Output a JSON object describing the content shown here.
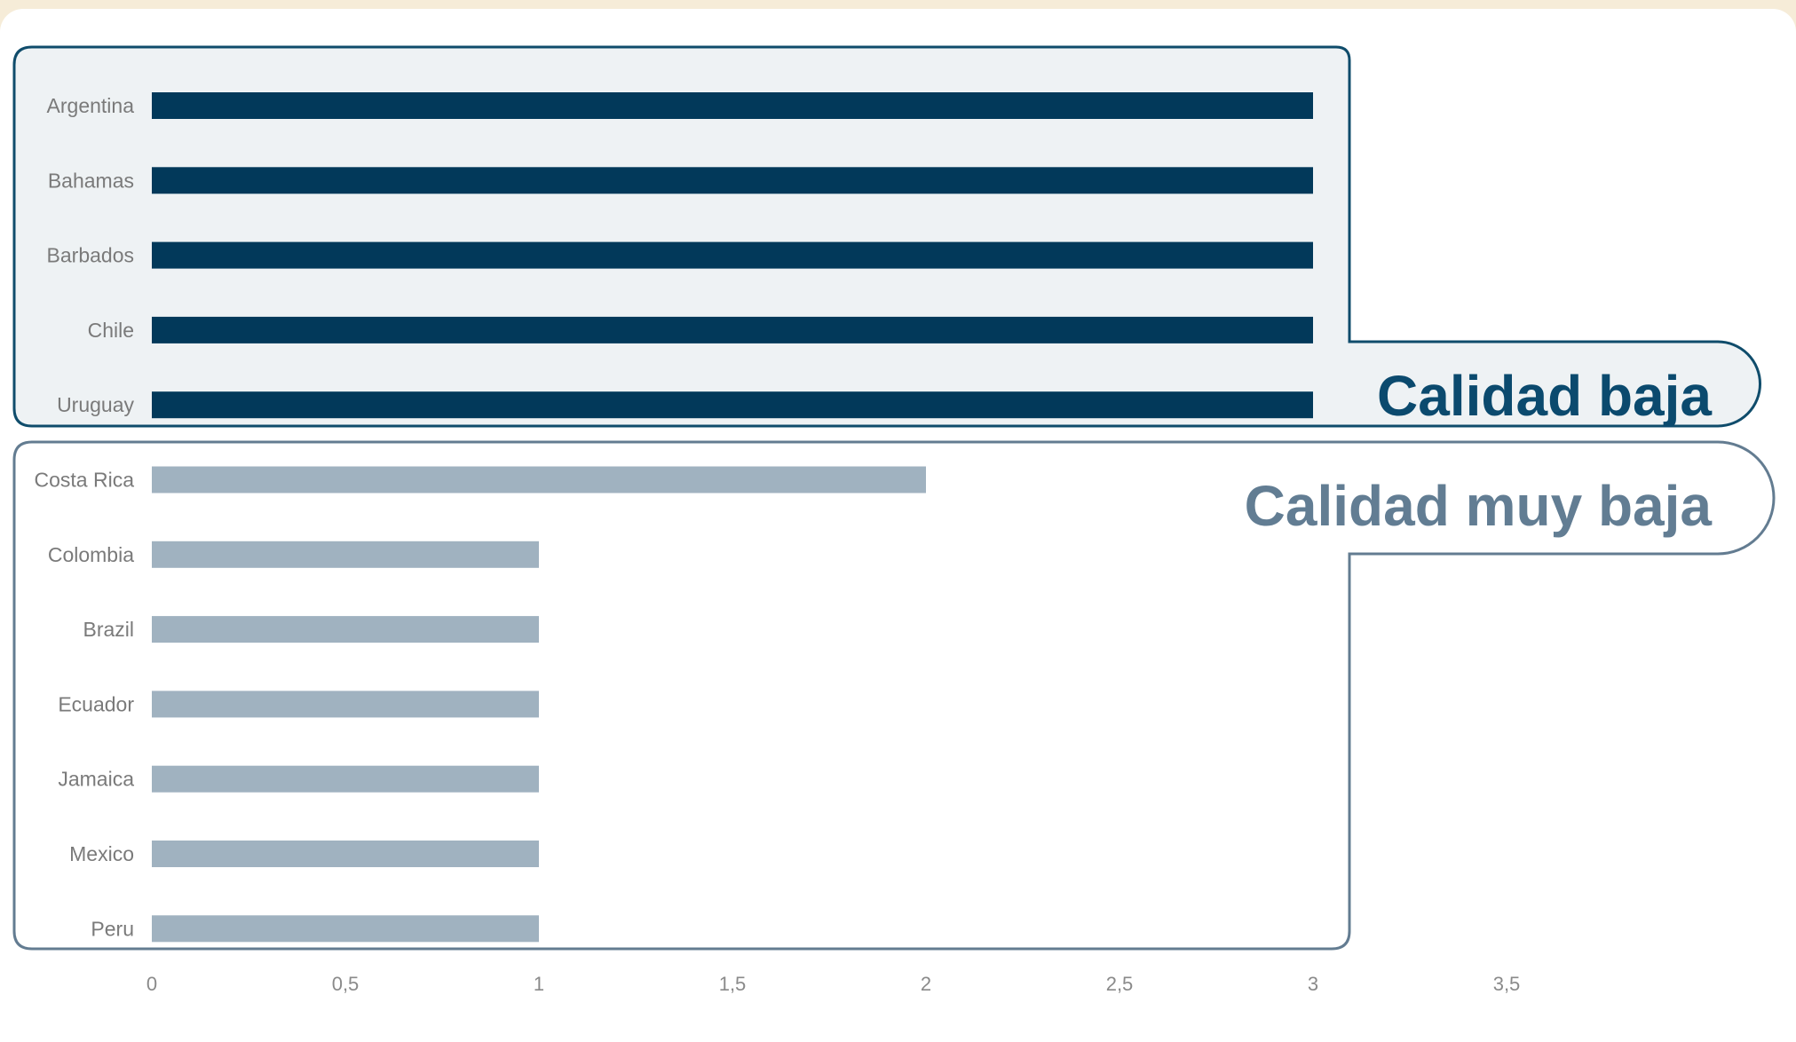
{
  "chart_data": {
    "type": "bar",
    "orientation": "horizontal",
    "categories": [
      "Argentina",
      "Bahamas",
      "Barbados",
      "Chile",
      "Uruguay",
      "Costa Rica",
      "Colombia",
      "Brazil",
      "Ecuador",
      "Jamaica",
      "Mexico",
      "Peru"
    ],
    "values": [
      3,
      3,
      3,
      3,
      3,
      2,
      1,
      1,
      1,
      1,
      1,
      1
    ],
    "xlim": [
      0,
      3.5
    ],
    "xticks": [
      "0",
      "0,5",
      "1",
      "1,5",
      "2",
      "2,5",
      "3",
      "3,5"
    ],
    "xtick_values": [
      0,
      0.5,
      1,
      1.5,
      2,
      2.5,
      3,
      3.5
    ],
    "grid": false,
    "groups": [
      {
        "label": "Calidad baja",
        "categories": [
          "Argentina",
          "Bahamas",
          "Barbados",
          "Chile",
          "Uruguay"
        ],
        "color": "#02395a",
        "label_color": "#0b4a6e",
        "fill": "#eef2f4",
        "border": "#0f4c6b"
      },
      {
        "label": "Calidad muy baja",
        "categories": [
          "Costa Rica",
          "Colombia",
          "Brazil",
          "Ecuador",
          "Jamaica",
          "Mexico",
          "Peru"
        ],
        "color": "#a0b2c0",
        "label_color": "#627d93",
        "fill": "#ffffff",
        "border": "#637c91"
      }
    ]
  },
  "colors": {
    "page_background": "#f6ecd8",
    "card": "#ffffff",
    "category_text": "#7a7a7a",
    "tick_text": "#8a8a8a"
  }
}
